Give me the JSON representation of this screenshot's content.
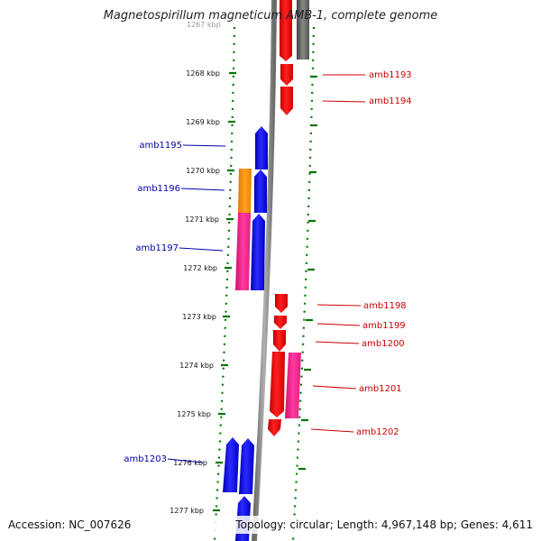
{
  "title": "Magnetospirillum magneticum AMB-1, complete genome",
  "accession": "Accession: NC_007626",
  "topology": "Topology: circular; Length: 4,967,148 bp; Genes: 4,611",
  "colors": {
    "forward_cds": "#0000ff",
    "reverse_cds": "#ff0000",
    "orange_feature": "#ff8c00",
    "pink_feature": "#ff1493",
    "gray_feature": "#555555",
    "backbone": "#888888",
    "tick": "#007700",
    "label_forward": "#0000aa",
    "label_reverse": "#cc0000"
  },
  "scale_labels": [
    "1267 kbp",
    "1268 kbp",
    "1269 kbp",
    "1270 kbp",
    "1271 kbp",
    "1272 kbp",
    "1273 kbp",
    "1274 kbp",
    "1275 kbp",
    "1276 kbp",
    "1277 kbp"
  ],
  "genes_forward": [
    {
      "label": "amb1195"
    },
    {
      "label": "amb1196"
    },
    {
      "label": "amb1197"
    },
    {
      "label": "amb1203"
    }
  ],
  "genes_reverse": [
    {
      "label": "amb1193"
    },
    {
      "label": "amb1194"
    },
    {
      "label": "amb1198"
    },
    {
      "label": "amb1199"
    },
    {
      "label": "amb1200"
    },
    {
      "label": "amb1201"
    },
    {
      "label": "amb1202"
    }
  ]
}
